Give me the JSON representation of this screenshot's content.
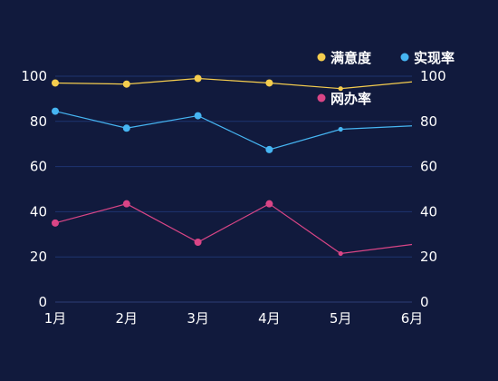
{
  "chart_data": {
    "type": "line",
    "categories": [
      "1月",
      "2月",
      "3月",
      "4月",
      "5月",
      "6月"
    ],
    "ylim": [
      0,
      100
    ],
    "yticks": [
      0,
      20,
      40,
      60,
      80,
      100
    ],
    "y2lim": [
      0,
      100
    ],
    "y2ticks": [
      0,
      20,
      40,
      60,
      80,
      100
    ],
    "grid": true,
    "legend_position": "top-right",
    "series": [
      {
        "name": "满意度",
        "color": "#f5cd4e",
        "values": [
          97,
          96.5,
          99,
          97,
          94.5,
          97.5
        ]
      },
      {
        "name": "实现率",
        "color": "#46b5f2",
        "values": [
          84.5,
          77,
          82.5,
          67.5,
          76.5,
          78
        ]
      },
      {
        "name": "网办率",
        "color": "#d94586",
        "values": [
          35,
          43.5,
          26.5,
          43.5,
          21.5,
          25.5
        ]
      }
    ]
  }
}
